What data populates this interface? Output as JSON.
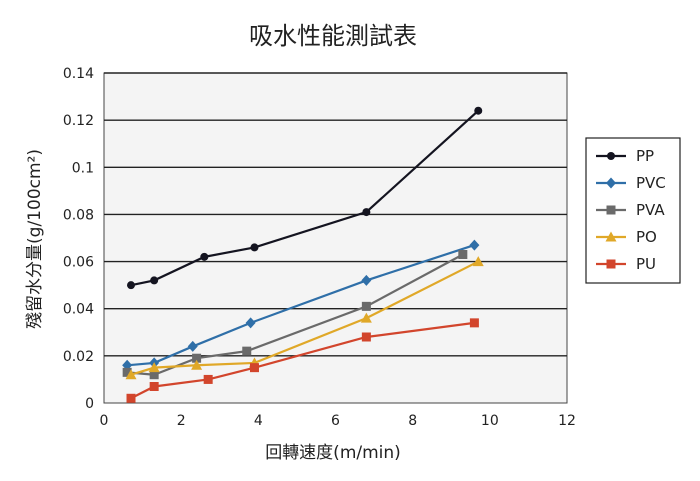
{
  "chart_data": {
    "type": "line",
    "title": "吸水性能測試表",
    "xlabel": "回轉速度(m/min)",
    "ylabel": "殘留水分量(g/100cm²)",
    "xlim": [
      0,
      12
    ],
    "ylim": [
      0,
      0.14
    ],
    "x_ticks": [
      "0",
      "2",
      "4",
      "6",
      "8",
      "10",
      "12"
    ],
    "y_ticks": [
      "0",
      "0.02",
      "0.04",
      "0.06",
      "0.08",
      "0.1",
      "0.12",
      "0.14"
    ],
    "grid": "horizontal",
    "legend_position": "right",
    "series": [
      {
        "name": "PP",
        "color": "#141420",
        "marker": "circle",
        "x": [
          0.7,
          1.3,
          2.6,
          3.9,
          6.8,
          9.7
        ],
        "y": [
          0.05,
          0.052,
          0.062,
          0.066,
          0.081,
          0.124
        ]
      },
      {
        "name": "PVC",
        "color": "#2f6fa8",
        "marker": "diamond",
        "x": [
          0.6,
          1.3,
          2.3,
          3.8,
          6.8,
          9.6
        ],
        "y": [
          0.016,
          0.017,
          0.024,
          0.034,
          0.052,
          0.067
        ]
      },
      {
        "name": "PVA",
        "color": "#6a6a6a",
        "marker": "square",
        "x": [
          0.6,
          1.3,
          2.4,
          3.7,
          6.8,
          9.3
        ],
        "y": [
          0.013,
          0.012,
          0.019,
          0.022,
          0.041,
          0.063
        ]
      },
      {
        "name": "PO",
        "color": "#e0a828",
        "marker": "triangle",
        "x": [
          0.7,
          1.3,
          2.4,
          3.9,
          6.8,
          9.7
        ],
        "y": [
          0.012,
          0.015,
          0.016,
          0.017,
          0.036,
          0.06
        ]
      },
      {
        "name": "PU",
        "color": "#d2452c",
        "marker": "square",
        "x": [
          0.7,
          1.3,
          2.7,
          3.9,
          6.8,
          9.6
        ],
        "y": [
          0.002,
          0.007,
          0.01,
          0.015,
          0.028,
          0.034
        ]
      }
    ]
  }
}
